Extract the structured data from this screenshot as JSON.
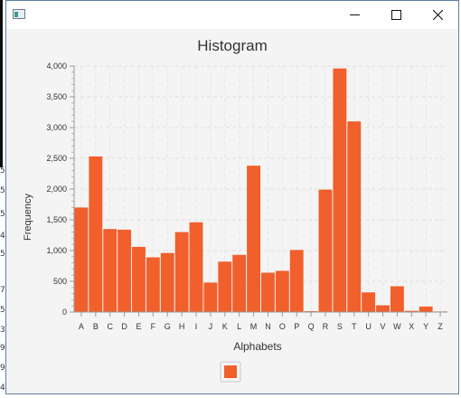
{
  "window": {
    "icon": "java-app-icon",
    "controls": [
      "minimize-icon",
      "maximize-icon",
      "close-icon"
    ]
  },
  "left_edge_digits": [
    "5",
    "5",
    "5",
    "4",
    "5",
    "7",
    "5",
    "3",
    "9",
    "9",
    "4"
  ],
  "chart_data": {
    "type": "bar",
    "title": "Histogram",
    "xlabel": "Alphabets",
    "ylabel": "Frequency",
    "ylim": [
      0,
      4000
    ],
    "yticks": [
      0,
      500,
      1000,
      1500,
      2000,
      2500,
      3000,
      3500,
      4000
    ],
    "ytick_labels": [
      "0",
      "500",
      "1,000",
      "1,500",
      "2,000",
      "2,500",
      "3,000",
      "3,500",
      "4,000"
    ],
    "grid": true,
    "legend": "bottom-center",
    "categories": [
      "A",
      "B",
      "C",
      "D",
      "E",
      "F",
      "G",
      "H",
      "I",
      "J",
      "K",
      "L",
      "M",
      "N",
      "O",
      "P",
      "Q",
      "R",
      "S",
      "T",
      "U",
      "V",
      "W",
      "X",
      "Y",
      "Z"
    ],
    "series": [
      {
        "color": "#f05f2c",
        "values": [
          1700,
          2530,
          1350,
          1340,
          1060,
          890,
          960,
          1300,
          1460,
          480,
          820,
          930,
          2380,
          640,
          670,
          1010,
          15,
          1990,
          3960,
          3100,
          320,
          110,
          420,
          20,
          90,
          10
        ]
      }
    ]
  }
}
